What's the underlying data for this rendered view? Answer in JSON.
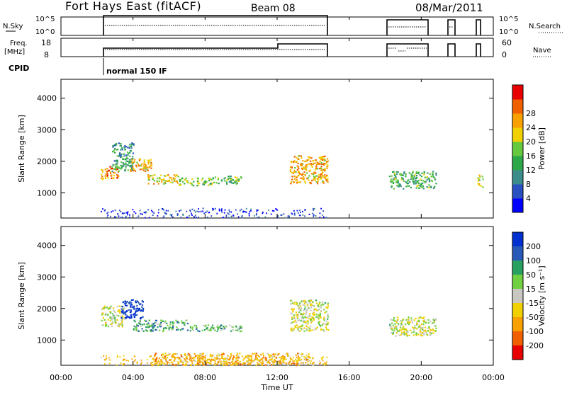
{
  "header": {
    "radar": "Fort Hays East (fitACF)",
    "beam": "Beam 08",
    "date": "08/Mar/2011"
  },
  "strip_panels": {
    "nsky": {
      "label": "N.Sky",
      "ticks": [
        "10^5",
        "10^0"
      ]
    },
    "nsearch": {
      "label": "N.Search",
      "ticks": [
        "10^5",
        "10^0"
      ]
    },
    "freq": {
      "label_line1": "Freq.",
      "label_line2": "[MHz]",
      "ticks": [
        "18",
        "8"
      ]
    },
    "nave": {
      "label": "Nave",
      "ticks": [
        "60",
        "0"
      ]
    },
    "cpid": {
      "label": "CPID",
      "mode": "normal 150 IF"
    }
  },
  "chart_data": [
    {
      "type": "heatmap",
      "name": "power",
      "ylabel": "Slant Range [km]",
      "yticks": [
        1000,
        2000,
        3000,
        4000
      ],
      "ylim": [
        200,
        4600
      ],
      "xlim": [
        0,
        24
      ],
      "colorbar_label": "Power [dB]",
      "colorbar_ticks": [
        "4",
        "8",
        "12",
        "16",
        "20",
        "24",
        "28"
      ],
      "colorbar_colors": [
        "#0000ff",
        "#2850c0",
        "#3c8c8c",
        "#2ca848",
        "#66c83c",
        "#f0d000",
        "#f8a000",
        "#f06000",
        "#e80000"
      ],
      "features": [
        {
          "t0": 2.2,
          "t1": 3.2,
          "r0": 1450,
          "r1": 1850,
          "level": 0.75
        },
        {
          "t0": 2.8,
          "t1": 4.0,
          "r0": 1700,
          "r1": 2600,
          "level": 0.35
        },
        {
          "t0": 3.8,
          "t1": 5.0,
          "r0": 1700,
          "r1": 2100,
          "level": 0.7
        },
        {
          "t0": 4.8,
          "t1": 6.5,
          "r0": 1300,
          "r1": 1600,
          "level": 0.65
        },
        {
          "t0": 6.5,
          "t1": 8.5,
          "r0": 1250,
          "r1": 1500,
          "level": 0.5
        },
        {
          "t0": 8.5,
          "t1": 10.0,
          "r0": 1300,
          "r1": 1550,
          "level": 0.45
        },
        {
          "t0": 12.7,
          "t1": 14.8,
          "r0": 1300,
          "r1": 2200,
          "level": 0.7
        },
        {
          "t0": 18.2,
          "t1": 20.8,
          "r0": 1150,
          "r1": 1700,
          "level": 0.4
        },
        {
          "t0": 23.1,
          "t1": 23.4,
          "r0": 1200,
          "r1": 1600,
          "level": 0.6
        }
      ]
    },
    {
      "type": "heatmap",
      "name": "velocity",
      "ylabel": "Slant Range [km]",
      "yticks": [
        1000,
        2000,
        3000,
        4000
      ],
      "ylim": [
        200,
        4600
      ],
      "xlim": [
        0,
        24
      ],
      "xticks": [
        "00:00",
        "04:00",
        "08:00",
        "12:00",
        "16:00",
        "20:00",
        "00:00"
      ],
      "xlabel": "Time UT",
      "colorbar_label": "Velocity [m s⁻¹]",
      "colorbar_ticks": [
        "200",
        "100",
        "50",
        "15",
        "-15",
        "-50",
        "-100",
        "-200"
      ],
      "colorbar_colors": [
        "#0030d0",
        "#2858b8",
        "#28a060",
        "#70d040",
        "#c8c8c0",
        "#f0d000",
        "#f8a000",
        "#f06000",
        "#e80000"
      ],
      "features": [
        {
          "t0": 2.2,
          "t1": 3.5,
          "r0": 1450,
          "r1": 2100,
          "level": 0.5
        },
        {
          "t0": 3.3,
          "t1": 4.6,
          "r0": 1700,
          "r1": 2300,
          "level": 0.05
        },
        {
          "t0": 4.0,
          "t1": 7.0,
          "r0": 1300,
          "r1": 1650,
          "level": 0.3
        },
        {
          "t0": 7.0,
          "t1": 10.0,
          "r0": 1300,
          "r1": 1500,
          "level": 0.35
        },
        {
          "t0": 12.7,
          "t1": 14.8,
          "r0": 1300,
          "r1": 2300,
          "level": 0.5
        },
        {
          "t0": 18.2,
          "t1": 20.8,
          "r0": 1150,
          "r1": 1750,
          "level": 0.5
        },
        {
          "t0": 5.0,
          "t1": 14.0,
          "r0": 220,
          "r1": 600,
          "level": 0.68
        }
      ]
    }
  ]
}
